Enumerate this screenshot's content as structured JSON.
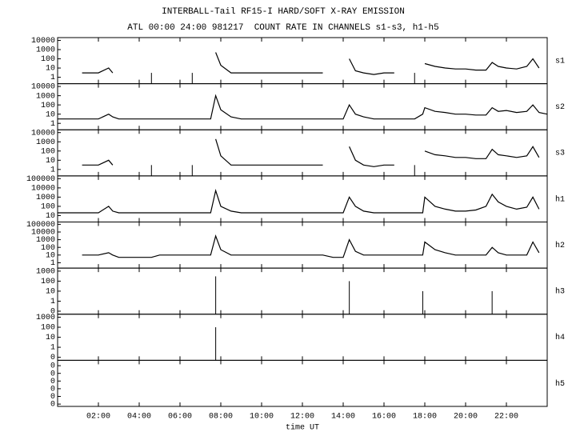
{
  "chart_data": {
    "type": "line",
    "title": "INTERBALL-Tail RF15-I HARD/SOFT X-RAY EMISSION",
    "subtitle": "ATL 00:00 24:00 981217  COUNT RATE IN CHANNELS s1-s3, h1-h5",
    "xlabel": "time UT",
    "log_scale": true,
    "grid": false,
    "xlim": [
      0,
      24
    ],
    "xticks": [
      {
        "value": 2,
        "label": "02:00"
      },
      {
        "value": 4,
        "label": "04:00"
      },
      {
        "value": 6,
        "label": "06:00"
      },
      {
        "value": 8,
        "label": "08:00"
      },
      {
        "value": 10,
        "label": "10:00"
      },
      {
        "value": 12,
        "label": "12:00"
      },
      {
        "value": 14,
        "label": "14:00"
      },
      {
        "value": 16,
        "label": "16:00"
      },
      {
        "value": 18,
        "label": "18:00"
      },
      {
        "value": 20,
        "label": "20:00"
      },
      {
        "value": 22,
        "label": "22:00"
      }
    ],
    "x": [
      0,
      1,
      1.2,
      1.5,
      2,
      2.5,
      2.7,
      3,
      4,
      4.6,
      5,
      6,
      6.6,
      7,
      7.5,
      7.75,
      8,
      8.5,
      9,
      10,
      11,
      12,
      13,
      13.5,
      14,
      14.3,
      14.6,
      15,
      15.5,
      16,
      16.5,
      17,
      17.5,
      17.9,
      18,
      18.5,
      19,
      19.5,
      20,
      20.5,
      21,
      21.3,
      21.6,
      22,
      22.5,
      23,
      23.3,
      23.6,
      24
    ],
    "series": [
      {
        "name": "s1",
        "color": "#000000",
        "ylim": [
          0.2,
          20000
        ],
        "yticks": [
          1,
          10,
          100,
          1000,
          10000
        ],
        "values": [
          null,
          null,
          3,
          3,
          3,
          10,
          3,
          null,
          null,
          3,
          null,
          null,
          3,
          null,
          null,
          500,
          20,
          3,
          3,
          3,
          3,
          3,
          3,
          null,
          null,
          100,
          5,
          3,
          2,
          3,
          3,
          null,
          3,
          null,
          30,
          15,
          10,
          8,
          8,
          6,
          6,
          40,
          15,
          10,
          8,
          15,
          100,
          10,
          null
        ]
      },
      {
        "name": "s2",
        "color": "#000000",
        "ylim": [
          0.2,
          20000
        ],
        "yticks": [
          1,
          10,
          100,
          1000,
          10000
        ],
        "values": [
          3,
          3,
          3,
          3,
          3,
          10,
          5,
          3,
          3,
          3,
          3,
          3,
          3,
          3,
          3,
          1000,
          30,
          5,
          3,
          3,
          3,
          3,
          3,
          3,
          3,
          100,
          10,
          5,
          3,
          3,
          3,
          3,
          3,
          10,
          50,
          20,
          15,
          10,
          10,
          8,
          8,
          50,
          20,
          25,
          15,
          20,
          100,
          15,
          10
        ]
      },
      {
        "name": "s3",
        "color": "#000000",
        "ylim": [
          0.2,
          20000
        ],
        "yticks": [
          1,
          10,
          100,
          1000,
          10000
        ],
        "values": [
          null,
          null,
          3,
          3,
          3,
          10,
          3,
          null,
          null,
          3,
          null,
          null,
          3,
          null,
          null,
          2000,
          30,
          3,
          3,
          3,
          3,
          3,
          3,
          null,
          null,
          300,
          10,
          3,
          2,
          3,
          3,
          null,
          3,
          null,
          100,
          40,
          30,
          20,
          20,
          15,
          15,
          150,
          40,
          30,
          20,
          30,
          300,
          20,
          null
        ]
      },
      {
        "name": "h1",
        "color": "#000000",
        "ylim": [
          2,
          200000
        ],
        "yticks": [
          10,
          100,
          1000,
          10000,
          100000
        ],
        "values": [
          20,
          20,
          20,
          20,
          20,
          100,
          30,
          20,
          20,
          20,
          20,
          20,
          20,
          20,
          20,
          5000,
          100,
          30,
          20,
          20,
          20,
          20,
          20,
          20,
          20,
          1000,
          100,
          30,
          20,
          20,
          20,
          20,
          20,
          20,
          1000,
          100,
          50,
          30,
          30,
          40,
          100,
          2000,
          300,
          100,
          50,
          80,
          1000,
          50,
          null
        ]
      },
      {
        "name": "h2",
        "color": "#000000",
        "ylim": [
          0.2,
          200000
        ],
        "yticks": [
          1,
          10,
          100,
          1000,
          10000,
          100000
        ],
        "values": [
          null,
          null,
          10,
          10,
          10,
          20,
          10,
          5,
          5,
          5,
          10,
          10,
          10,
          10,
          10,
          3000,
          50,
          10,
          10,
          10,
          10,
          10,
          10,
          5,
          5,
          1000,
          30,
          10,
          10,
          10,
          10,
          10,
          10,
          10,
          500,
          50,
          20,
          10,
          10,
          10,
          10,
          100,
          20,
          10,
          10,
          10,
          500,
          20,
          null
        ]
      },
      {
        "name": "h3",
        "color": "#000000",
        "ylim": [
          0.05,
          2000
        ],
        "yticks": [
          {
            "value": 0.1,
            "label": "0"
          },
          1,
          10,
          100,
          1000
        ],
        "values": [
          null,
          null,
          null,
          null,
          null,
          null,
          null,
          null,
          null,
          null,
          null,
          null,
          null,
          null,
          null,
          300,
          null,
          null,
          null,
          null,
          null,
          null,
          null,
          null,
          null,
          100,
          null,
          null,
          null,
          null,
          null,
          null,
          null,
          10,
          null,
          null,
          null,
          null,
          null,
          null,
          null,
          10,
          null,
          null,
          null,
          null,
          null,
          null,
          null
        ]
      },
      {
        "name": "h4",
        "color": "#000000",
        "ylim": [
          0.05,
          2000
        ],
        "yticks": [
          {
            "value": 0.1,
            "label": "0"
          },
          1,
          10,
          100,
          1000
        ],
        "values": [
          null,
          null,
          null,
          null,
          null,
          null,
          null,
          null,
          null,
          null,
          null,
          null,
          null,
          null,
          null,
          100,
          null,
          null,
          null,
          null,
          null,
          null,
          null,
          null,
          null,
          null,
          null,
          null,
          null,
          null,
          null,
          null,
          null,
          null,
          null,
          null,
          null,
          null,
          null,
          null,
          null,
          null,
          null,
          null,
          null,
          null,
          null,
          null,
          null
        ]
      },
      {
        "name": "h5",
        "color": "#000000",
        "ylim": [
          5e-07,
          0.5
        ],
        "yticks": [
          {
            "value": 1e-06,
            "label": "0"
          },
          {
            "value": 1e-05,
            "label": "0"
          },
          {
            "value": 0.0001,
            "label": "0"
          },
          {
            "value": 0.001,
            "label": "0"
          },
          {
            "value": 0.01,
            "label": "0"
          },
          {
            "value": 0.1,
            "label": "0"
          }
        ],
        "values": [
          null,
          null,
          null,
          null,
          null,
          null,
          null,
          null,
          null,
          null,
          null,
          null,
          null,
          null,
          null,
          null,
          null,
          null,
          null,
          null,
          null,
          null,
          null,
          null,
          null,
          null,
          null,
          null,
          null,
          null,
          null,
          null,
          null,
          null,
          null,
          null,
          null,
          null,
          null,
          null,
          null,
          null,
          null,
          null,
          null,
          null,
          null,
          null,
          null
        ]
      }
    ]
  }
}
